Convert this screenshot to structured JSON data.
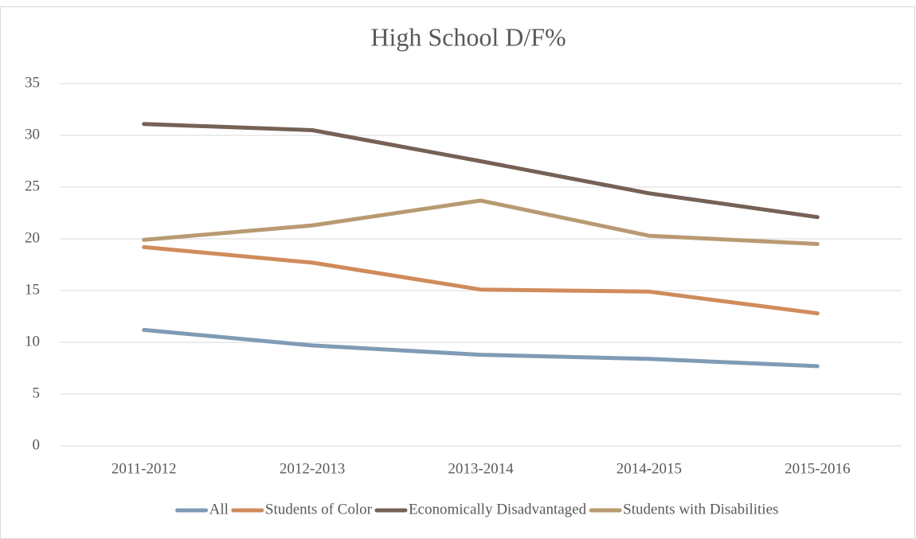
{
  "chart_data": {
    "type": "line",
    "title": "High School D/F%",
    "categories": [
      "2011-2012",
      "2012-2013",
      "2013-2014",
      "2014-2015",
      "2015-2016"
    ],
    "series": [
      {
        "name": "All",
        "color": "#7f9bb5",
        "values": [
          11.2,
          9.7,
          8.8,
          8.4,
          7.7
        ]
      },
      {
        "name": "Students of Color",
        "color": "#d08b5b",
        "values": [
          19.2,
          17.7,
          15.1,
          14.9,
          12.8
        ]
      },
      {
        "name": "Economically Disadvantaged",
        "color": "#756155",
        "values": [
          31.1,
          30.5,
          27.5,
          24.4,
          22.1
        ]
      },
      {
        "name": "Students with Disabilities",
        "color": "#b89a72",
        "values": [
          19.9,
          21.3,
          23.7,
          20.3,
          19.5
        ]
      }
    ],
    "ylim": [
      0,
      35
    ],
    "yticks": [
      0,
      5,
      10,
      15,
      20,
      25,
      30,
      35
    ],
    "grid": true,
    "legend": "bottom"
  }
}
